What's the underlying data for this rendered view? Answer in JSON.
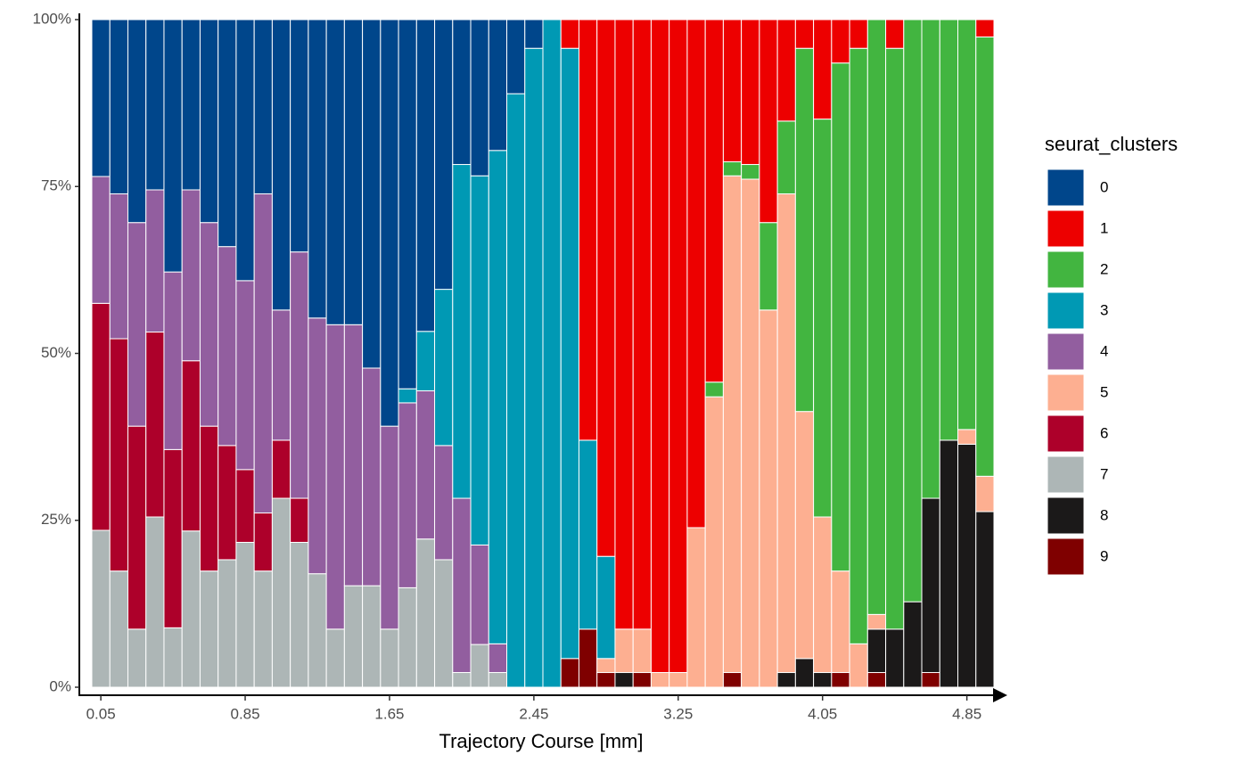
{
  "chart_data": {
    "type": "stacked_bar",
    "x_label": "Trajectory Course [mm]",
    "legend_title": "seurat_clusters",
    "legend_position": "right",
    "x": [
      0.05,
      0.15,
      0.25,
      0.35,
      0.45,
      0.55,
      0.65,
      0.75,
      0.85,
      0.95,
      1.05,
      1.15,
      1.25,
      1.35,
      1.45,
      1.55,
      1.65,
      1.75,
      1.85,
      1.95,
      2.05,
      2.15,
      2.25,
      2.35,
      2.45,
      2.55,
      2.65,
      2.75,
      2.85,
      2.95,
      3.05,
      3.15,
      3.25,
      3.35,
      3.45,
      3.55,
      3.65,
      3.75,
      3.85,
      3.95,
      4.05,
      4.15,
      4.25,
      4.35,
      4.45,
      4.55,
      4.65,
      4.75,
      4.85,
      4.95
    ],
    "xlim": [
      0,
      5
    ],
    "xticks": [
      0.05,
      0.85,
      1.65,
      2.45,
      3.25,
      4.05,
      4.85
    ],
    "ylim": [
      0,
      100
    ],
    "yticks": [
      {
        "value": 0,
        "label": "0%"
      },
      {
        "value": 25,
        "label": "25%"
      },
      {
        "value": 50,
        "label": "50%"
      },
      {
        "value": 75,
        "label": "75%"
      },
      {
        "value": 100,
        "label": "100%"
      }
    ],
    "series": [
      {
        "name": "0",
        "color": "#00468B",
        "values": [
          23.5,
          26.1,
          30.4,
          25.5,
          37.8,
          25.5,
          30.4,
          34,
          39.1,
          26.1,
          43.5,
          34.8,
          44.7,
          45.7,
          45.7,
          52.2,
          60.9,
          55.3,
          46.7,
          40.4,
          21.7,
          23.4,
          19.6,
          11.1,
          4.3,
          0,
          0,
          0,
          0,
          0,
          0,
          0,
          0,
          0,
          0,
          0,
          0,
          0,
          0,
          0,
          0,
          0,
          0,
          0,
          0,
          0,
          0,
          0,
          0,
          0
        ]
      },
      {
        "name": "1",
        "color": "#ED0000",
        "values": [
          0,
          0,
          0,
          0,
          0,
          0,
          0,
          0,
          0,
          0,
          0,
          0,
          0,
          0,
          0,
          0,
          0,
          0,
          0,
          0,
          0,
          0,
          0,
          0,
          0,
          0,
          4.3,
          63,
          80.4,
          91.3,
          91.3,
          97.8,
          97.8,
          76.1,
          54.3,
          21.3,
          21.7,
          30.4,
          15.2,
          4.3,
          14.9,
          6.5,
          4.3,
          0,
          4.3,
          0,
          0,
          0,
          0,
          2.6
        ]
      },
      {
        "name": "2",
        "color": "#42B540",
        "values": [
          0,
          0,
          0,
          0,
          0,
          0,
          0,
          0,
          0,
          0,
          0,
          0,
          0,
          0,
          0,
          0,
          0,
          0,
          0,
          0,
          0,
          0,
          0,
          0,
          0,
          0,
          0,
          0,
          0,
          0,
          0,
          0,
          0,
          0,
          2.2,
          2.1,
          2.2,
          13.1,
          10.9,
          54.4,
          59.6,
          76.1,
          89.2,
          89.1,
          87,
          87.2,
          71.7,
          63,
          61.4,
          65.8
        ]
      },
      {
        "name": "3",
        "color": "#0099B4",
        "values": [
          0,
          0,
          0,
          0,
          0,
          0,
          0,
          0,
          0,
          0,
          0,
          0,
          0,
          0,
          0,
          0,
          0,
          2.1,
          8.9,
          23.4,
          50,
          55.3,
          73.9,
          88.9,
          95.7,
          100,
          91.4,
          28.3,
          15.3,
          0,
          0,
          0,
          0,
          0,
          0,
          0,
          0,
          0,
          0,
          0,
          0,
          0,
          0,
          0,
          0,
          0,
          0,
          0,
          0,
          0
        ]
      },
      {
        "name": "4",
        "color": "#925E9F",
        "values": [
          19,
          21.7,
          30.5,
          21.3,
          26.6,
          25.6,
          30.5,
          29.8,
          28.3,
          47.8,
          19.5,
          36.9,
          38.3,
          45.6,
          39.1,
          32.6,
          30.4,
          27.7,
          22.2,
          17.1,
          26.1,
          14.9,
          4.3,
          0,
          0,
          0,
          0,
          0,
          0,
          0,
          0,
          0,
          0,
          0,
          0,
          0,
          0,
          0,
          0,
          0,
          0,
          0,
          0,
          0,
          0,
          0,
          0,
          0,
          0,
          0
        ]
      },
      {
        "name": "5",
        "color": "#FDAF91",
        "values": [
          0,
          0,
          0,
          0,
          0,
          0,
          0,
          0,
          0,
          0,
          0,
          0,
          0,
          0,
          0,
          0,
          0,
          0,
          0,
          0,
          0,
          0,
          0,
          0,
          0,
          0,
          0,
          0,
          2.1,
          6.5,
          6.5,
          2.2,
          2.2,
          23.9,
          43.5,
          74.4,
          76.1,
          56.5,
          71.7,
          37,
          23.3,
          15.2,
          6.5,
          2.2,
          0,
          0,
          0,
          0,
          2.2,
          5.3
        ]
      },
      {
        "name": "6",
        "color": "#AD002A",
        "values": [
          34,
          34.8,
          30.4,
          27.7,
          26.7,
          25.5,
          21.7,
          17.1,
          10.9,
          8.7,
          8.7,
          6.6,
          0,
          0,
          0,
          0,
          0,
          0,
          0,
          0,
          0,
          0,
          0,
          0,
          0,
          0,
          0,
          0,
          0,
          0,
          0,
          0,
          0,
          0,
          0,
          0,
          0,
          0,
          0,
          0,
          0,
          0,
          0,
          0,
          0,
          0,
          0,
          0,
          0,
          0
        ]
      },
      {
        "name": "7",
        "color": "#ADB6B6",
        "values": [
          23.5,
          17.4,
          8.7,
          25.5,
          8.9,
          23.4,
          17.4,
          19.1,
          21.7,
          17.4,
          28.3,
          21.7,
          17,
          8.7,
          15.2,
          15.2,
          8.7,
          14.9,
          22.2,
          19.1,
          2.2,
          6.4,
          2.2,
          0,
          0,
          0,
          0,
          0,
          0,
          0,
          0,
          0,
          0,
          0,
          0,
          0,
          0,
          0,
          0,
          0,
          0,
          0,
          0,
          0,
          0,
          0,
          0,
          0,
          0,
          0
        ]
      },
      {
        "name": "8",
        "color": "#1B1919",
        "values": [
          0,
          0,
          0,
          0,
          0,
          0,
          0,
          0,
          0,
          0,
          0,
          0,
          0,
          0,
          0,
          0,
          0,
          0,
          0,
          0,
          0,
          0,
          0,
          0,
          0,
          0,
          0,
          0,
          0,
          2.2,
          0,
          0,
          0,
          0,
          0,
          0,
          0,
          0,
          2.2,
          4.3,
          2.2,
          0,
          0,
          6.5,
          8.7,
          12.8,
          26.1,
          37,
          36.4,
          26.3
        ]
      },
      {
        "name": "9",
        "color": "#7F0000",
        "values": [
          0,
          0,
          0,
          0,
          0,
          0,
          0,
          0,
          0,
          0,
          0,
          0,
          0,
          0,
          0,
          0,
          0,
          0,
          0,
          0,
          0,
          0,
          0,
          0,
          0,
          0,
          4.3,
          8.7,
          2.2,
          0,
          2.2,
          0,
          0,
          0,
          0,
          2.2,
          0,
          0,
          0,
          0,
          0,
          2.2,
          0,
          2.2,
          0,
          0,
          2.2,
          0,
          0,
          0
        ]
      }
    ]
  }
}
